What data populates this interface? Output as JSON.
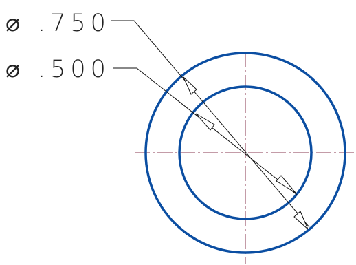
{
  "dimensions": [
    {
      "symbol": "⌀",
      "value": ".750"
    },
    {
      "symbol": "⌀",
      "value": ".500"
    }
  ],
  "colors": {
    "circle": "#0b4ea2",
    "centerline": "#8a3a52",
    "leader": "#111111",
    "text": "#222222"
  }
}
